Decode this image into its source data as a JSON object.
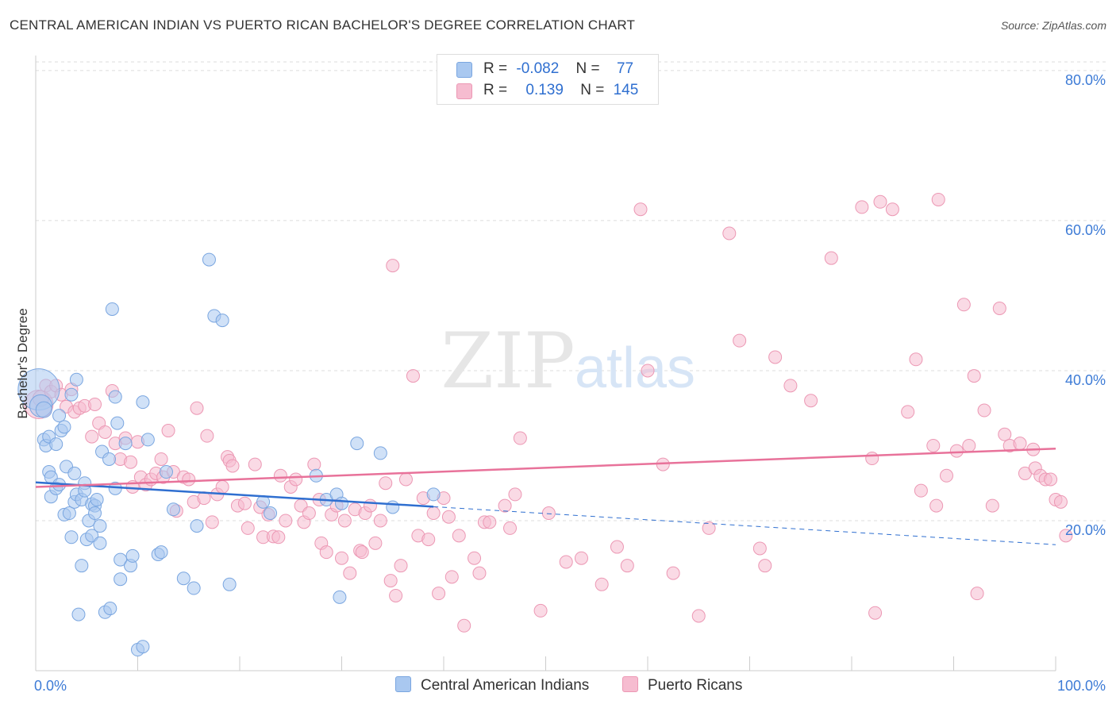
{
  "title": "CENTRAL AMERICAN INDIAN VS PUERTO RICAN BACHELOR'S DEGREE CORRELATION CHART",
  "source": "Source: ZipAtlas.com",
  "watermark": {
    "zip": "ZIP",
    "atlas": "atlas"
  },
  "legend": {
    "rows": [
      {
        "r_label": "R =",
        "r_value": "-0.082",
        "n_label": "N =",
        "n_value": "77"
      },
      {
        "r_label": "R =",
        "r_value": "0.139",
        "n_label": "N =",
        "n_value": "145"
      }
    ]
  },
  "bottom_legend": {
    "series1": "Central American Indians",
    "series2": "Puerto Ricans"
  },
  "colors": {
    "blue_fill": "#a9c8f0",
    "blue_stroke": "#7aa6e0",
    "blue_line": "#2f6fd0",
    "pink_fill": "#f6bcd0",
    "pink_stroke": "#ec98b4",
    "pink_line": "#e8729a",
    "axis_label": "#3d7bd6",
    "grid": "#dddddd"
  },
  "chart_data": {
    "type": "scatter",
    "title": "CENTRAL AMERICAN INDIAN VS PUERTO RICAN BACHELOR'S DEGREE CORRELATION CHART",
    "xlabel": "",
    "ylabel": "Bachelor's Degree",
    "xlim": [
      0,
      100
    ],
    "ylim": [
      0,
      82
    ],
    "x_tick_labels": [
      "0.0%",
      "100.0%"
    ],
    "y_ticks": [
      20,
      40,
      60,
      80
    ],
    "y_tick_labels": [
      "20.0%",
      "40.0%",
      "60.0%",
      "80.0%"
    ],
    "grid": true,
    "legend_position": "top-center",
    "series": [
      {
        "name": "Central American Indians",
        "r": -0.082,
        "n": 77,
        "trend": {
          "x_start": 0,
          "y_start": 25.1,
          "x_solid_end": 39,
          "x_end": 100,
          "y_end": 16.8
        },
        "points": [
          [
            0.3,
            37.5,
            26
          ],
          [
            0.5,
            35.3,
            14
          ],
          [
            0.8,
            34.8,
            10
          ],
          [
            0.8,
            30.8,
            8
          ],
          [
            1.0,
            30.0,
            8
          ],
          [
            1.3,
            31.2,
            8
          ],
          [
            1.3,
            26.5,
            8
          ],
          [
            1.5,
            23.2,
            8
          ],
          [
            1.5,
            25.8,
            8
          ],
          [
            2.0,
            30.2,
            8
          ],
          [
            2.0,
            24.3,
            8
          ],
          [
            2.3,
            24.8,
            8
          ],
          [
            2.3,
            34.0,
            8
          ],
          [
            2.5,
            32.0,
            8
          ],
          [
            2.8,
            32.5,
            8
          ],
          [
            2.8,
            20.8,
            8
          ],
          [
            3.0,
            27.2,
            8
          ],
          [
            3.3,
            21.0,
            8
          ],
          [
            3.5,
            17.8,
            8
          ],
          [
            3.5,
            36.8,
            8
          ],
          [
            3.8,
            26.3,
            8
          ],
          [
            3.8,
            22.5,
            8
          ],
          [
            4.0,
            23.5,
            8
          ],
          [
            4.0,
            38.8,
            8
          ],
          [
            4.2,
            7.5,
            8
          ],
          [
            4.5,
            22.8,
            8
          ],
          [
            4.5,
            14.0,
            8
          ],
          [
            4.8,
            25.0,
            8
          ],
          [
            4.8,
            24.0,
            8
          ],
          [
            5.0,
            17.5,
            8
          ],
          [
            5.2,
            20.0,
            8
          ],
          [
            5.5,
            22.2,
            8
          ],
          [
            5.5,
            18.0,
            8
          ],
          [
            5.8,
            22.0,
            8
          ],
          [
            5.8,
            21.0,
            8
          ],
          [
            6.0,
            22.8,
            8
          ],
          [
            6.3,
            19.3,
            8
          ],
          [
            6.3,
            17.0,
            8
          ],
          [
            6.5,
            29.2,
            8
          ],
          [
            6.8,
            7.8,
            8
          ],
          [
            7.2,
            28.2,
            8
          ],
          [
            7.3,
            8.3,
            8
          ],
          [
            7.5,
            48.2,
            8
          ],
          [
            7.8,
            36.5,
            8
          ],
          [
            7.8,
            24.3,
            8
          ],
          [
            8.0,
            33.0,
            8
          ],
          [
            8.3,
            14.8,
            8
          ],
          [
            8.3,
            12.2,
            8
          ],
          [
            8.8,
            30.3,
            8
          ],
          [
            9.3,
            14.0,
            8
          ],
          [
            9.5,
            15.3,
            8
          ],
          [
            10.0,
            2.8,
            8
          ],
          [
            10.5,
            3.2,
            8
          ],
          [
            10.5,
            35.8,
            8
          ],
          [
            11.0,
            30.8,
            8
          ],
          [
            12.0,
            15.5,
            8
          ],
          [
            12.3,
            15.8,
            8
          ],
          [
            12.8,
            26.5,
            8
          ],
          [
            13.5,
            21.5,
            8
          ],
          [
            14.5,
            12.3,
            8
          ],
          [
            15.5,
            11.0,
            8
          ],
          [
            15.8,
            19.3,
            8
          ],
          [
            17.0,
            54.8,
            8
          ],
          [
            17.5,
            47.3,
            8
          ],
          [
            18.3,
            46.7,
            8
          ],
          [
            19.0,
            11.5,
            8
          ],
          [
            22.3,
            22.5,
            8
          ],
          [
            23.0,
            21.0,
            8
          ],
          [
            27.5,
            26.0,
            8
          ],
          [
            28.5,
            22.8,
            8
          ],
          [
            29.5,
            23.5,
            8
          ],
          [
            29.8,
            9.8,
            8
          ],
          [
            30.0,
            22.3,
            8
          ],
          [
            31.5,
            30.3,
            8
          ],
          [
            33.8,
            29.0,
            8
          ],
          [
            35.0,
            21.8,
            8
          ],
          [
            39.0,
            23.5,
            8
          ]
        ]
      },
      {
        "name": "Puerto Ricans",
        "r": 0.139,
        "n": 145,
        "trend": {
          "x_start": 0,
          "y_start": 24.5,
          "x_end": 100,
          "y_end": 29.6
        },
        "points": [
          [
            0.3,
            35.5,
            18
          ],
          [
            0.5,
            36.3,
            10
          ],
          [
            1.0,
            38.0,
            8
          ],
          [
            1.5,
            37.2,
            8
          ],
          [
            2.0,
            38.0,
            8
          ],
          [
            2.5,
            36.8,
            8
          ],
          [
            3.0,
            35.2,
            8
          ],
          [
            3.5,
            37.5,
            8
          ],
          [
            3.8,
            34.5,
            8
          ],
          [
            4.3,
            35.0,
            8
          ],
          [
            4.8,
            35.3,
            8
          ],
          [
            5.5,
            31.2,
            8
          ],
          [
            5.8,
            35.5,
            8
          ],
          [
            6.2,
            33.0,
            8
          ],
          [
            6.8,
            31.8,
            8
          ],
          [
            7.5,
            37.3,
            8
          ],
          [
            7.8,
            30.3,
            8
          ],
          [
            8.3,
            28.2,
            8
          ],
          [
            8.8,
            31.0,
            8
          ],
          [
            9.3,
            27.8,
            8
          ],
          [
            9.5,
            24.5,
            8
          ],
          [
            10.0,
            30.5,
            8
          ],
          [
            10.3,
            25.8,
            8
          ],
          [
            10.8,
            24.8,
            8
          ],
          [
            11.3,
            25.5,
            8
          ],
          [
            11.8,
            26.3,
            8
          ],
          [
            12.3,
            28.2,
            8
          ],
          [
            12.5,
            25.8,
            8
          ],
          [
            13.0,
            32.0,
            8
          ],
          [
            13.5,
            26.5,
            8
          ],
          [
            13.8,
            21.3,
            8
          ],
          [
            14.5,
            25.8,
            8
          ],
          [
            15.0,
            25.5,
            8
          ],
          [
            15.5,
            22.5,
            8
          ],
          [
            15.8,
            35.0,
            8
          ],
          [
            16.5,
            23.0,
            8
          ],
          [
            16.8,
            31.3,
            8
          ],
          [
            17.3,
            19.8,
            8
          ],
          [
            17.8,
            23.5,
            8
          ],
          [
            18.3,
            24.5,
            8
          ],
          [
            18.8,
            28.5,
            8
          ],
          [
            19.0,
            28.0,
            8
          ],
          [
            19.3,
            27.3,
            8
          ],
          [
            19.8,
            22.0,
            8
          ],
          [
            20.5,
            22.3,
            8
          ],
          [
            20.8,
            19.0,
            8
          ],
          [
            21.5,
            27.5,
            8
          ],
          [
            22.0,
            21.8,
            8
          ],
          [
            22.3,
            17.8,
            8
          ],
          [
            22.8,
            20.8,
            8
          ],
          [
            23.3,
            17.9,
            8
          ],
          [
            23.8,
            17.8,
            8
          ],
          [
            24.0,
            26.0,
            8
          ],
          [
            24.5,
            20.0,
            8
          ],
          [
            25.0,
            24.5,
            8
          ],
          [
            25.5,
            25.5,
            8
          ],
          [
            26.0,
            22.0,
            8
          ],
          [
            26.3,
            19.8,
            8
          ],
          [
            26.8,
            21.0,
            8
          ],
          [
            27.3,
            27.5,
            8
          ],
          [
            27.8,
            22.8,
            8
          ],
          [
            28.0,
            17.0,
            8
          ],
          [
            28.5,
            15.8,
            8
          ],
          [
            29.0,
            20.8,
            8
          ],
          [
            29.5,
            22.0,
            8
          ],
          [
            30.0,
            15.0,
            8
          ],
          [
            30.3,
            20.0,
            8
          ],
          [
            30.8,
            13.0,
            8
          ],
          [
            31.3,
            21.5,
            8
          ],
          [
            31.8,
            16.0,
            8
          ],
          [
            32.0,
            15.8,
            8
          ],
          [
            32.3,
            21.0,
            8
          ],
          [
            32.8,
            22.0,
            8
          ],
          [
            33.3,
            17.0,
            8
          ],
          [
            33.8,
            20.0,
            8
          ],
          [
            34.3,
            25.0,
            8
          ],
          [
            34.8,
            12.0,
            8
          ],
          [
            35.0,
            54.0,
            8
          ],
          [
            35.3,
            10.0,
            8
          ],
          [
            35.8,
            14.0,
            8
          ],
          [
            36.3,
            25.5,
            8
          ],
          [
            37.0,
            39.3,
            8
          ],
          [
            37.5,
            18.0,
            8
          ],
          [
            38.0,
            23.0,
            8
          ],
          [
            38.5,
            17.5,
            8
          ],
          [
            39.0,
            21.0,
            8
          ],
          [
            39.5,
            10.3,
            8
          ],
          [
            40.0,
            23.0,
            8
          ],
          [
            40.5,
            20.5,
            8
          ],
          [
            40.8,
            12.5,
            8
          ],
          [
            41.5,
            18.0,
            8
          ],
          [
            42.0,
            6.0,
            8
          ],
          [
            43.0,
            15.0,
            8
          ],
          [
            43.5,
            13.0,
            8
          ],
          [
            44.0,
            19.8,
            8
          ],
          [
            44.5,
            19.8,
            8
          ],
          [
            46.0,
            22.0,
            8
          ],
          [
            46.5,
            19.0,
            8
          ],
          [
            47.0,
            23.5,
            8
          ],
          [
            47.5,
            31.0,
            8
          ],
          [
            49.5,
            8.0,
            8
          ],
          [
            50.3,
            21.0,
            8
          ],
          [
            52.0,
            14.5,
            8
          ],
          [
            53.5,
            15.0,
            8
          ],
          [
            55.5,
            11.5,
            8
          ],
          [
            57.0,
            16.5,
            8
          ],
          [
            58.0,
            14.0,
            8
          ],
          [
            59.3,
            61.5,
            8
          ],
          [
            60.0,
            40.0,
            8
          ],
          [
            61.5,
            27.5,
            8
          ],
          [
            62.5,
            13.0,
            8
          ],
          [
            65.0,
            7.3,
            8
          ],
          [
            66.0,
            19.0,
            8
          ],
          [
            68.0,
            58.3,
            8
          ],
          [
            69.0,
            44.0,
            8
          ],
          [
            71.0,
            16.3,
            8
          ],
          [
            71.5,
            14.0,
            8
          ],
          [
            72.5,
            41.8,
            8
          ],
          [
            74.0,
            38.0,
            8
          ],
          [
            76.0,
            36.0,
            8
          ],
          [
            78.0,
            55.0,
            8
          ],
          [
            81.0,
            61.8,
            8
          ],
          [
            82.0,
            28.3,
            8
          ],
          [
            82.3,
            7.7,
            8
          ],
          [
            82.8,
            62.5,
            8
          ],
          [
            84.0,
            61.5,
            8
          ],
          [
            85.5,
            34.5,
            8
          ],
          [
            86.3,
            41.5,
            8
          ],
          [
            86.8,
            24.0,
            8
          ],
          [
            88.0,
            30.0,
            8
          ],
          [
            88.3,
            22.0,
            8
          ],
          [
            88.5,
            62.8,
            8
          ],
          [
            89.3,
            26.0,
            8
          ],
          [
            90.3,
            29.3,
            8
          ],
          [
            91.0,
            48.8,
            8
          ],
          [
            91.5,
            30.0,
            8
          ],
          [
            92.0,
            39.3,
            8
          ],
          [
            92.3,
            10.3,
            8
          ],
          [
            93.0,
            34.7,
            8
          ],
          [
            93.8,
            22.0,
            8
          ],
          [
            94.5,
            48.3,
            8
          ],
          [
            95.0,
            31.5,
            8
          ],
          [
            95.5,
            30.0,
            8
          ],
          [
            96.5,
            30.3,
            8
          ],
          [
            97.0,
            26.3,
            8
          ],
          [
            97.8,
            29.5,
            8
          ],
          [
            98.0,
            27.0,
            8
          ],
          [
            98.5,
            26.0,
            8
          ],
          [
            99.0,
            25.5,
            8
          ],
          [
            99.5,
            25.5,
            8
          ],
          [
            100.0,
            22.8,
            8
          ],
          [
            100.5,
            22.5,
            8
          ],
          [
            101.0,
            18.0,
            8
          ]
        ]
      }
    ]
  }
}
